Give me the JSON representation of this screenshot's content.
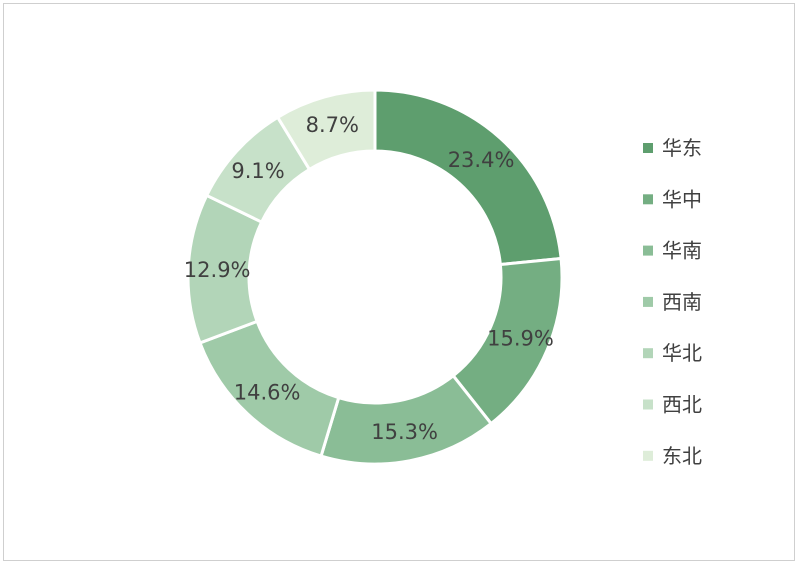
{
  "chart_data": {
    "type": "pie",
    "variant": "donut",
    "categories": [
      "华东",
      "华中",
      "华南",
      "西南",
      "华北",
      "西北",
      "东北"
    ],
    "values": [
      23.4,
      15.9,
      15.3,
      14.6,
      12.9,
      9.1,
      8.7
    ],
    "labels": [
      "23.4%",
      "15.9%",
      "15.3%",
      "14.6%",
      "12.9%",
      "9.1%",
      "8.7%"
    ],
    "colors": [
      "#5e9e6e",
      "#74ae82",
      "#8abd96",
      "#9fcaa8",
      "#b2d5b8",
      "#c7e1c9",
      "#deedd9"
    ],
    "title": "",
    "legend_position": "right"
  }
}
